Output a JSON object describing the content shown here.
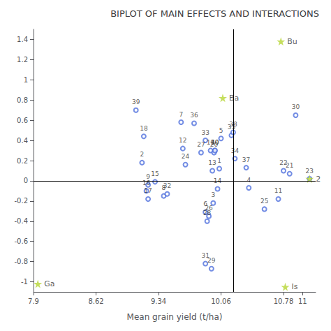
{
  "chart_data": {
    "type": "scatter",
    "title": "BIPLOT OF MAIN EFFECTS AND INTERACTIONS",
    "xlabel": "Mean grain yield (t/ha)",
    "xlim": [
      7.9,
      11.15
    ],
    "ylim": [
      -1.1,
      1.5
    ],
    "xticks": [
      7.9,
      8.62,
      9.34,
      10.06,
      10.78,
      11
    ],
    "yticks": [
      -1,
      -0.8,
      -0.6,
      -0.4,
      -0.2,
      0,
      0.2,
      0.4,
      0.6,
      0.8,
      1,
      1.2,
      1.4
    ],
    "vline": 10.2,
    "hline": 0,
    "series": [
      {
        "marker": "circle",
        "labels": [
          "1",
          "2",
          "3",
          "4",
          "5",
          "6",
          "7",
          "8",
          "9",
          "10",
          "11",
          "12",
          "13",
          "14",
          "15",
          "16",
          "17",
          "18",
          "19",
          "20",
          "21",
          "22",
          "23",
          "24",
          "25",
          "26",
          "27",
          "28",
          "29",
          "30",
          "31",
          "32",
          "33",
          "34",
          "35",
          "36",
          "37",
          "38",
          "39",
          "40"
        ],
        "x": [
          10.04,
          9.15,
          9.97,
          10.38,
          10.06,
          9.88,
          9.6,
          9.4,
          9.22,
          9.99,
          10.72,
          9.62,
          9.96,
          10.02,
          9.3,
          9.2,
          9.22,
          9.17,
          9.94,
          9.98,
          10.85,
          10.78,
          11.08,
          9.65,
          10.56,
          9.92,
          9.83,
          9.9,
          9.95,
          10.92,
          9.88,
          9.44,
          9.88,
          10.22,
          10.18,
          9.75,
          10.35,
          10.2,
          9.08,
          9.99
        ],
        "values": [
          0.12,
          0.18,
          -0.22,
          -0.07,
          0.42,
          -0.31,
          0.58,
          -0.15,
          -0.04,
          0.3,
          -0.18,
          0.32,
          0.1,
          -0.08,
          -0.01,
          -0.1,
          -0.18,
          0.44,
          0.3,
          0.28,
          0.07,
          0.1,
          0.02,
          0.16,
          -0.28,
          -0.35,
          0.28,
          -0.4,
          -0.87,
          0.65,
          -0.82,
          -0.13,
          0.4,
          0.22,
          0.45,
          0.57,
          0.13,
          0.48,
          0.7,
          0.3
        ]
      },
      {
        "marker": "star",
        "labels": [
          "Bu",
          "Ba",
          "Ga",
          "Is",
          "2"
        ],
        "x": [
          10.75,
          10.08,
          7.95,
          10.8,
          11.08
        ],
        "values": [
          1.38,
          0.82,
          -1.02,
          -1.05,
          0.02
        ]
      }
    ]
  }
}
